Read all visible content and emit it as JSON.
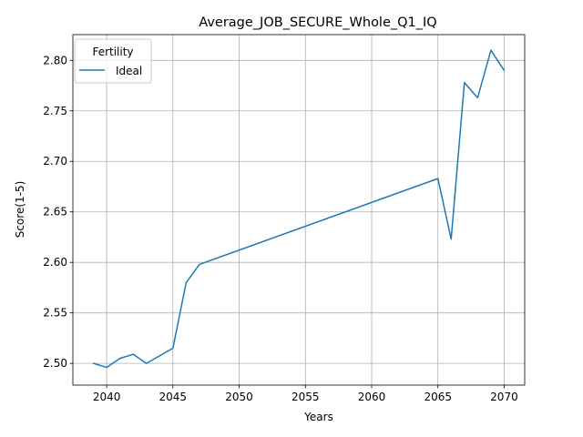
{
  "chart_data": {
    "type": "line",
    "title": "Average_JOB_SECURE_Whole_Q1_IQ",
    "xlabel": "Years",
    "ylabel": "Score(1-5)",
    "xlim": [
      2037.45,
      2071.55
    ],
    "ylim": [
      2.4785,
      2.8255
    ],
    "xticks": [
      2040,
      2045,
      2050,
      2055,
      2060,
      2065,
      2070
    ],
    "yticks": [
      2.5,
      2.55,
      2.6,
      2.65,
      2.7,
      2.75,
      2.8
    ],
    "ytick_labels": [
      "2.50",
      "2.55",
      "2.60",
      "2.65",
      "2.70",
      "2.75",
      "2.80"
    ],
    "grid": true,
    "legend": {
      "title": "Fertility",
      "placement": "upper-left"
    },
    "series": [
      {
        "name": "Ideal",
        "color": "#1f77b4",
        "x": [
          2039,
          2040,
          2041,
          2042,
          2043,
          2045,
          2046,
          2047,
          2065,
          2066,
          2067,
          2068,
          2069,
          2070
        ],
        "y": [
          2.5,
          2.496,
          2.505,
          2.509,
          2.5,
          2.515,
          2.58,
          2.598,
          2.683,
          2.623,
          2.778,
          2.763,
          2.81,
          2.79
        ]
      }
    ]
  }
}
